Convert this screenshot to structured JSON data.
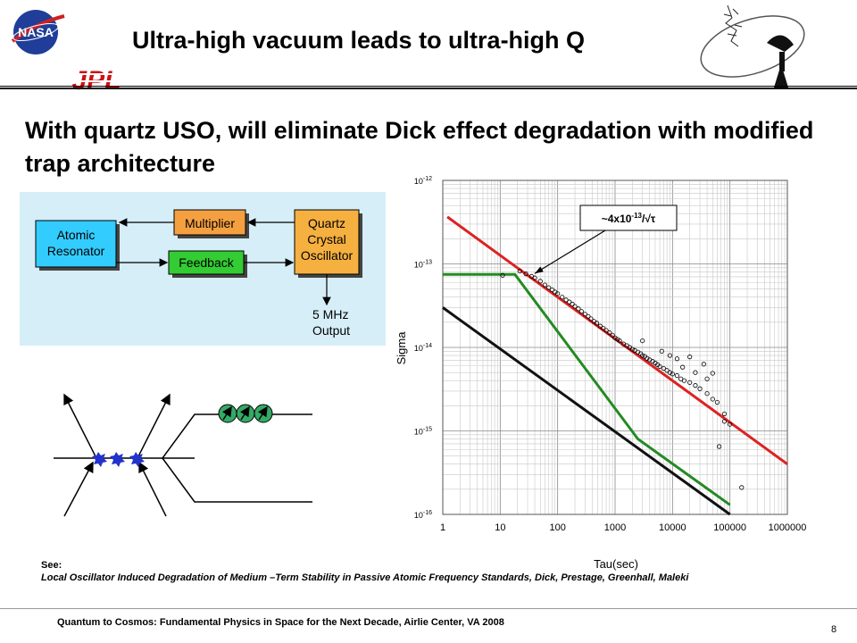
{
  "header": {
    "title": "Ultra-high vacuum leads to ultra-high Q",
    "nasa_logo_text": "NASA",
    "jpl_logo_text": "JPL"
  },
  "subtitle": "With quartz USO, will eliminate Dick effect degradation with modified trap architecture",
  "block_diagram": {
    "atomic_resonator": "Atomic Resonator",
    "multiplier": "Multiplier",
    "feedback": "Feedback",
    "quartz_oscillator": "Quartz Crystal Oscillator",
    "output": "5 MHz Output",
    "colors": {
      "atomic": "#33ccff",
      "multiplier": "#f5a040",
      "feedback": "#33cc33",
      "quartz": "#f5b040",
      "background": "#d6eef8"
    }
  },
  "chart_data": {
    "type": "line",
    "xlabel": "Tau(sec)",
    "ylabel": "Sigma",
    "xscale": "log",
    "yscale": "log",
    "xlim": [
      1,
      1000000
    ],
    "ylim": [
      1e-16,
      1e-12
    ],
    "x_ticks": [
      "1",
      "10",
      "100",
      "1000",
      "10000",
      "100000",
      "1000000"
    ],
    "y_ticks": [
      {
        "base": "10",
        "exp": "-12"
      },
      {
        "base": "10",
        "exp": "-13"
      },
      {
        "base": "10",
        "exp": "-14"
      },
      {
        "base": "10",
        "exp": "-15"
      },
      {
        "base": "10",
        "exp": "-16"
      }
    ],
    "grid": true,
    "annotation": {
      "prefix": "~4x10",
      "exp": "-13",
      "suffix": "/√τ",
      "points_to": [
        30,
        7.3e-14
      ]
    },
    "series": [
      {
        "color": "#dd2222",
        "points": [
          [
            1.2,
            3.65e-13
          ],
          [
            1000000,
            4e-16
          ]
        ]
      },
      {
        "color": "#228b22",
        "points": [
          [
            1,
            7.5e-14
          ],
          [
            18,
            7.5e-14
          ],
          [
            2500,
            8e-16
          ],
          [
            100000,
            1.3e-16
          ]
        ]
      },
      {
        "color": "#111111",
        "points": [
          [
            1,
            3e-14
          ],
          [
            100000,
            1e-16
          ]
        ]
      },
      {
        "color": "#000000",
        "marker": "circle",
        "points": [
          [
            11,
            7.3e-14
          ],
          [
            22,
            8.2e-14
          ],
          [
            28,
            7.6e-14
          ],
          [
            35,
            7.1e-14
          ],
          [
            40,
            6.8e-14
          ],
          [
            50,
            6.2e-14
          ],
          [
            60,
            5.6e-14
          ],
          [
            70,
            5.2e-14
          ],
          [
            80,
            4.9e-14
          ],
          [
            90,
            4.6e-14
          ],
          [
            100,
            4.4e-14
          ],
          [
            120,
            4e-14
          ],
          [
            140,
            3.7e-14
          ],
          [
            160,
            3.5e-14
          ],
          [
            180,
            3.3e-14
          ],
          [
            200,
            3.1e-14
          ],
          [
            230,
            2.9e-14
          ],
          [
            260,
            2.7e-14
          ],
          [
            300,
            2.5e-14
          ],
          [
            340,
            2.35e-14
          ],
          [
            380,
            2.2e-14
          ],
          [
            430,
            2.05e-14
          ],
          [
            480,
            1.95e-14
          ],
          [
            550,
            1.8e-14
          ],
          [
            620,
            1.7e-14
          ],
          [
            700,
            1.6e-14
          ],
          [
            800,
            1.5e-14
          ],
          [
            900,
            1.4e-14
          ],
          [
            1000,
            1.3e-14
          ],
          [
            1100,
            1.25e-14
          ],
          [
            1200,
            1.2e-14
          ],
          [
            1400,
            1.1e-14
          ],
          [
            1600,
            1.05e-14
          ],
          [
            1800,
            1e-14
          ],
          [
            2000,
            9.5e-15
          ],
          [
            2200,
            9.2e-15
          ],
          [
            2500,
            8.8e-15
          ],
          [
            2800,
            8.4e-15
          ],
          [
            3000,
            8e-15
          ],
          [
            3300,
            7.8e-15
          ],
          [
            3600,
            7.4e-15
          ],
          [
            4000,
            7.1e-15
          ],
          [
            4500,
            6.8e-15
          ],
          [
            5000,
            6.5e-15
          ],
          [
            5500,
            6.2e-15
          ],
          [
            6000,
            5.9e-15
          ],
          [
            7000,
            5.6e-15
          ],
          [
            8000,
            5.3e-15
          ],
          [
            9000,
            5e-15
          ],
          [
            10000,
            4.8e-15
          ],
          [
            12000,
            4.6e-15
          ],
          [
            14000,
            4.2e-15
          ],
          [
            16000,
            4e-15
          ],
          [
            20000,
            3.8e-15
          ],
          [
            25000,
            3.5e-15
          ],
          [
            30000,
            3.2e-15
          ],
          [
            40000,
            2.8e-15
          ],
          [
            50000,
            2.4e-15
          ],
          [
            60000,
            2.2e-15
          ],
          [
            80000,
            1.6e-15
          ],
          [
            100000,
            1.2e-15
          ],
          [
            65000,
            6.5e-16
          ],
          [
            160000,
            2.1e-16
          ],
          [
            3000,
            1.2e-14
          ],
          [
            6500,
            9e-15
          ],
          [
            9000,
            8e-15
          ],
          [
            12000,
            7.3e-15
          ],
          [
            20000,
            7.7e-15
          ],
          [
            35000,
            6.3e-15
          ],
          [
            50000,
            4.9e-15
          ],
          [
            80000,
            1.3e-15
          ],
          [
            15000,
            5.8e-15
          ],
          [
            25000,
            5e-15
          ],
          [
            40000,
            4.2e-15
          ]
        ]
      }
    ]
  },
  "reference": {
    "see_label": "See:",
    "title": "Local Oscillator Induced Degradation of Medium –Term Stability in Passive Atomic Frequency Standards,",
    "authors": " Dick, Prestage, Greenhall, Maleki"
  },
  "footer": {
    "text": "Quantum to Cosmos: Fundamental Physics in Space for the Next Decade, Airlie Center, VA 2008",
    "page_number": "8"
  }
}
